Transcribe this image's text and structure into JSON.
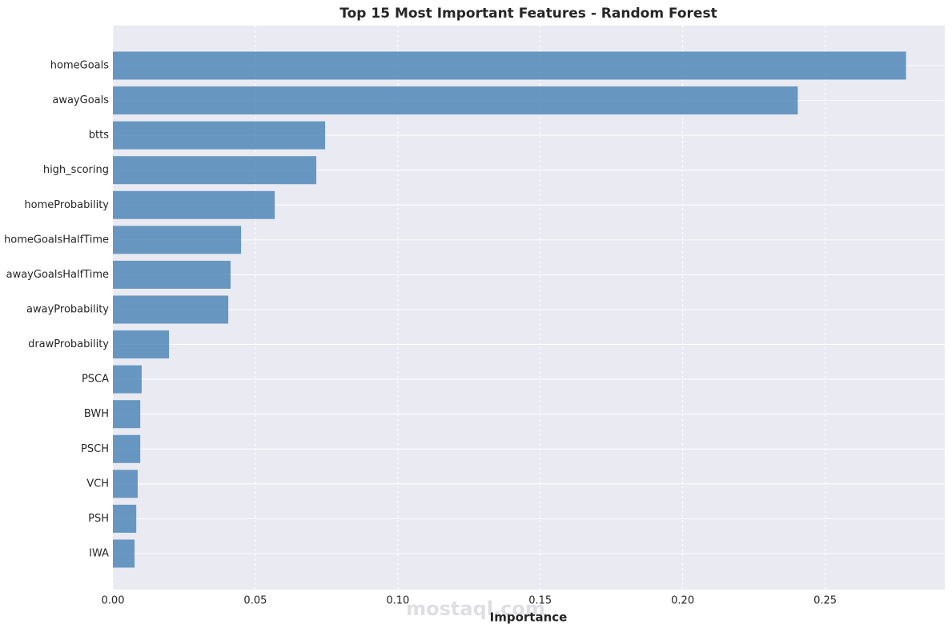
{
  "chart_data": {
    "type": "barh",
    "title": "Top 15 Most Important Features - Random Forest",
    "x_label": "Importance",
    "watermark": "mostaql.com",
    "categories": [
      "homeGoals",
      "awayGoals",
      "btts",
      "high_scoring",
      "homeProbability",
      "homeGoalsHalfTime",
      "awayGoalsHalfTime",
      "awayProbability",
      "drawProbability",
      "PSCA",
      "BWH",
      "PSCH",
      "VCH",
      "PSH",
      "IWA"
    ],
    "values": [
      0.2784,
      0.2404,
      0.0745,
      0.0714,
      0.0568,
      0.045,
      0.0413,
      0.0405,
      0.0197,
      0.0101,
      0.0096,
      0.0096,
      0.0087,
      0.0082,
      0.0076
    ],
    "color": "#4682b4",
    "xlim": [
      0,
      0.292
    ],
    "xticks": [
      {
        "value": 0,
        "label": "0.00"
      },
      0.05,
      {
        "value": 0.1,
        "label": "0.10"
      },
      0.15,
      {
        "value": 0.2,
        "label": "0.20"
      },
      0.25
    ],
    "grid": true
  }
}
